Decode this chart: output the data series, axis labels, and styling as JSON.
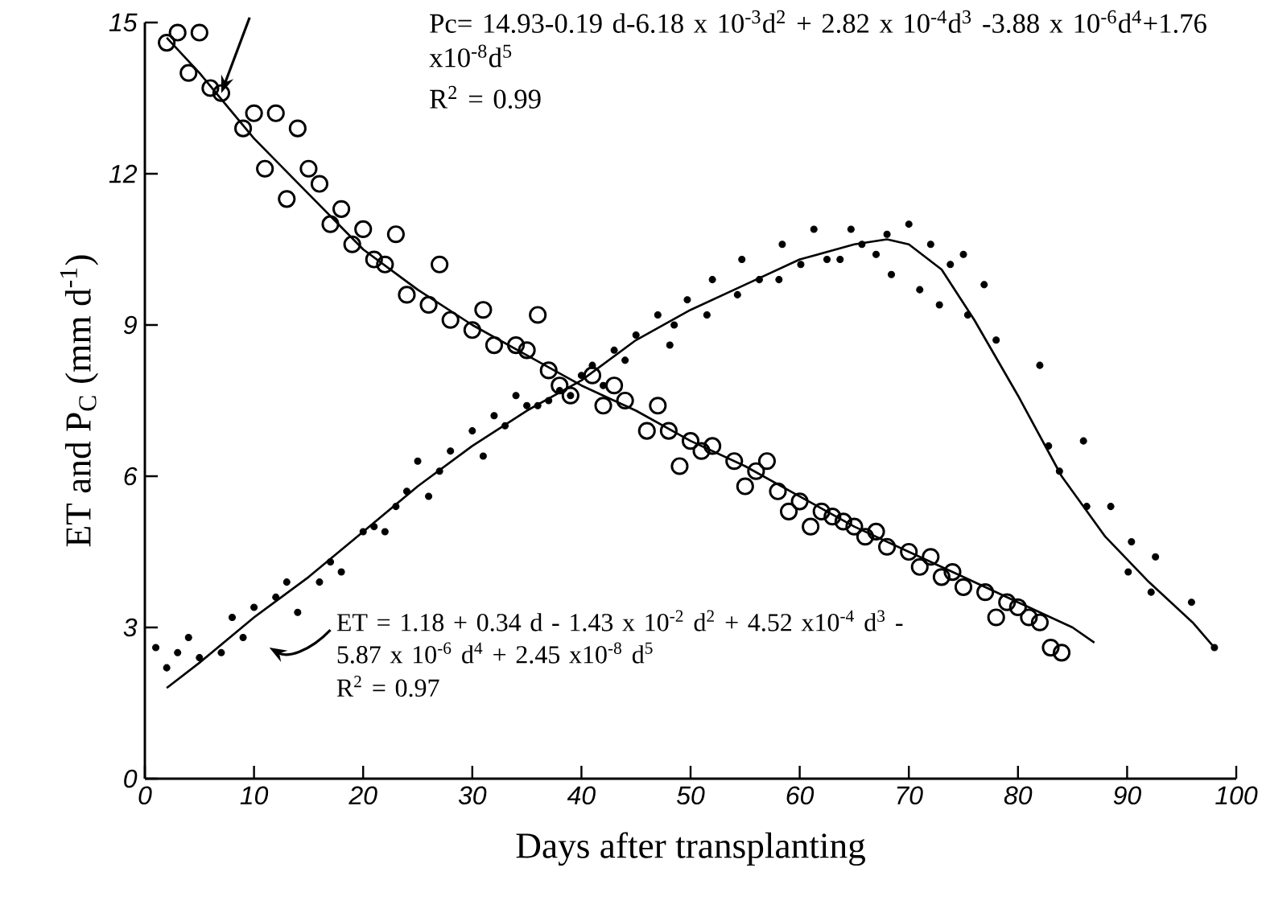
{
  "chart_data": {
    "type": "scatter",
    "xlabel": "Days after transplanting",
    "ylabel": "ET and P$_{C}$ (mm d$^{-1}$)",
    "xlim": [
      0,
      100
    ],
    "xticks": [
      0,
      10,
      20,
      30,
      40,
      50,
      60,
      70,
      80,
      90,
      100
    ],
    "ylim": [
      0,
      15
    ],
    "yticks": [
      0,
      3,
      6,
      9,
      12,
      15
    ],
    "grid": false,
    "annotations": [
      "Pc= 14.93-0.19 d-6.18 x 10$^{-3}$d$^{2}$ + 2.82 x 10$^{-4}$d$^{3}$ -3.88 x 10$^{-6}$d$^{4}$+1.76 x10$^{-8}$d$^{5}$",
      "R$^{2}$ = 0.99",
      "ET = 1.18 + 0.34 d - 1.43 x 10$^{-2}$ d$^{2}$ + 4.52 x10$^{-4}$ d$^{3}$ - 5.87 x 10$^{-6}$ d$^{4}$ + 2.45 x10$^{-8}$ d$^{5}$",
      "R$^{2}$ = 0.97"
    ],
    "series": [
      {
        "marker": "circle",
        "color": "#000000",
        "x": [
          2,
          3,
          4,
          5,
          6,
          7,
          9,
          10,
          11,
          12,
          13,
          14,
          15,
          16,
          17,
          18,
          19,
          20,
          21,
          22,
          23,
          24,
          26,
          27,
          28,
          30,
          31,
          32,
          34,
          35,
          36,
          37,
          38,
          39,
          41,
          42,
          43,
          44,
          46,
          47,
          48,
          49,
          50,
          51,
          52,
          54,
          55,
          56,
          57,
          58,
          59,
          60,
          61,
          62,
          63,
          64,
          65,
          66,
          67,
          68,
          70,
          71,
          72,
          73,
          74,
          75,
          77,
          78,
          79,
          80,
          81,
          82,
          83,
          84
        ],
        "values": [
          14.6,
          14.8,
          14.0,
          14.8,
          13.7,
          13.6,
          12.9,
          13.2,
          12.1,
          13.2,
          11.5,
          12.9,
          12.1,
          11.8,
          11.0,
          11.3,
          10.6,
          10.9,
          10.3,
          10.2,
          10.8,
          9.6,
          9.4,
          10.2,
          9.1,
          8.9,
          9.3,
          8.6,
          8.6,
          8.5,
          9.2,
          8.1,
          7.8,
          7.6,
          8.0,
          7.4,
          7.8,
          7.5,
          6.9,
          7.4,
          6.9,
          6.2,
          6.7,
          6.5,
          6.6,
          6.3,
          5.8,
          6.1,
          6.3,
          5.7,
          5.3,
          5.5,
          5.0,
          5.3,
          5.2,
          5.1,
          5.0,
          4.8,
          4.9,
          4.6,
          4.5,
          4.2,
          4.4,
          4.0,
          4.1,
          3.8,
          3.7,
          3.2,
          3.5,
          3.4,
          3.2,
          3.1,
          2.6,
          2.5
        ]
      },
      {
        "type": "line",
        "marker": "none",
        "color": "#000000",
        "x": [
          2,
          5,
          10,
          15,
          20,
          25,
          30,
          35,
          40,
          45,
          50,
          55,
          60,
          65,
          70,
          75,
          80,
          85,
          87
        ],
        "values": [
          14.7,
          14.0,
          12.7,
          11.6,
          10.5,
          9.7,
          9.0,
          8.4,
          7.8,
          7.3,
          6.7,
          6.2,
          5.6,
          5.0,
          4.5,
          4.0,
          3.5,
          3.0,
          2.7
        ]
      },
      {
        "marker": "circle",
        "color": "#000000",
        "x": [
          1,
          2,
          3,
          4,
          5,
          7,
          8,
          9,
          10,
          12,
          13,
          14,
          16,
          17,
          18,
          20,
          21,
          22,
          23,
          24,
          25,
          26,
          27,
          28,
          30,
          31,
          32,
          33,
          34,
          35,
          36,
          37,
          38,
          39,
          40,
          41,
          42,
          43,
          44,
          45,
          47,
          48.1,
          48.5,
          49.7,
          51.5,
          52,
          54.3,
          54.7,
          56.3,
          58.1,
          58.4,
          60.1,
          61.3,
          62.5,
          63.7,
          64.7,
          65.7,
          67,
          68,
          68.4,
          70,
          71,
          72,
          72.8,
          73.8,
          75,
          75.4,
          76.9,
          78,
          82,
          82.8,
          83.8,
          86,
          86.3,
          88.5,
          90.1,
          90.4,
          92.2,
          92.6,
          95.9,
          98
        ],
        "values": [
          2.6,
          2.2,
          2.5,
          2.8,
          2.4,
          2.5,
          3.2,
          2.8,
          3.4,
          3.6,
          3.9,
          3.3,
          3.9,
          4.3,
          4.1,
          4.9,
          5.0,
          4.9,
          5.4,
          5.7,
          6.3,
          5.6,
          6.1,
          6.5,
          6.9,
          6.4,
          7.2,
          7.0,
          7.6,
          7.4,
          7.4,
          7.5,
          7.7,
          7.6,
          8.0,
          8.2,
          7.8,
          8.5,
          8.3,
          8.8,
          9.2,
          8.6,
          9.0,
          9.5,
          9.2,
          9.9,
          9.6,
          10.3,
          9.9,
          9.9,
          10.6,
          10.2,
          10.9,
          10.3,
          10.3,
          10.9,
          10.6,
          10.4,
          10.8,
          10.0,
          11.0,
          9.7,
          10.6,
          9.4,
          10.2,
          10.4,
          9.2,
          9.8,
          8.7,
          8.2,
          6.6,
          6.1,
          6.7,
          5.4,
          5.4,
          4.1,
          4.7,
          3.7,
          4.4,
          3.5,
          2.6
        ]
      },
      {
        "type": "line",
        "marker": "none",
        "color": "#000000",
        "x": [
          2,
          5,
          10,
          15,
          20,
          25,
          30,
          35,
          40,
          45,
          50,
          55,
          60,
          65,
          68,
          70,
          73,
          76,
          80,
          84,
          88,
          92,
          96,
          98
        ],
        "values": [
          1.8,
          2.3,
          3.2,
          4.0,
          4.9,
          5.8,
          6.6,
          7.3,
          7.9,
          8.7,
          9.3,
          9.8,
          10.3,
          10.6,
          10.7,
          10.6,
          10.1,
          9.1,
          7.6,
          6.0,
          4.8,
          3.9,
          3.1,
          2.6
        ]
      }
    ]
  }
}
